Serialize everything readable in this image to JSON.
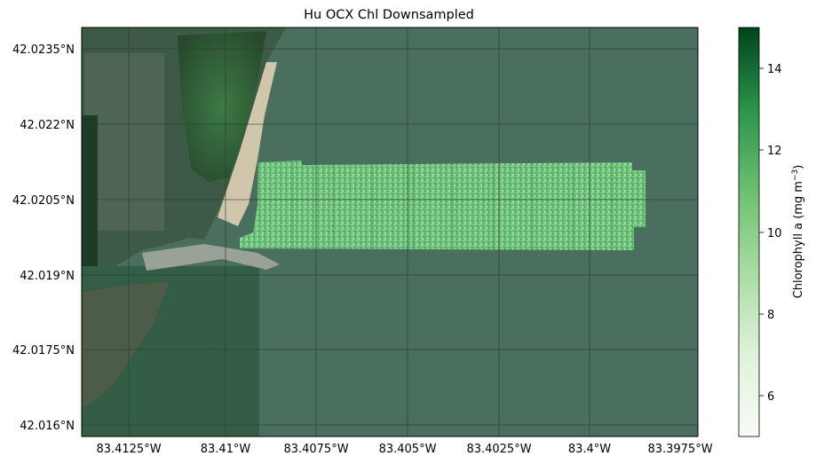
{
  "title": "Hu OCX Chl Downsampled",
  "colors": {
    "water": "#4a6f5f",
    "land_dark": "#2e4a33",
    "sand": "#c9c2a8",
    "gridline": "#2a3a30",
    "colormap_low": "#f7fcf5",
    "colormap_mid": "#74c476",
    "colormap_high": "#00441b"
  },
  "map": {
    "x_ticks": [
      "83.4125°W",
      "83.41°W",
      "83.4075°W",
      "83.405°W",
      "83.4025°W",
      "83.4°W",
      "83.3975°W"
    ],
    "y_ticks": [
      "42.0235°N",
      "42.022°N",
      "42.0205°N",
      "42.019°N",
      "42.0175°N",
      "42.016°N"
    ],
    "gridlines": true,
    "basemap": "satellite imagery"
  },
  "colorbar": {
    "label": "Chlorophyll a (mg m",
    "label_superscript": "−3",
    "label_close": ")",
    "ticks": [
      "6",
      "8",
      "10",
      "12",
      "14"
    ],
    "range": [
      5,
      15
    ],
    "colormap": "Greens"
  },
  "chart_data": {
    "type": "heatmap",
    "title": "Hu OCX Chl Downsampled",
    "xlabel": "",
    "ylabel": "",
    "colorbar_label": "Chlorophyll a (mg m−3)",
    "colorbar_range": [
      5,
      15
    ],
    "x_ticks": [
      "83.4125°W",
      "83.41°W",
      "83.4075°W",
      "83.405°W",
      "83.4025°W",
      "83.4°W",
      "83.3975°W"
    ],
    "y_ticks": [
      "42.0235°N",
      "42.022°N",
      "42.0205°N",
      "42.019°N",
      "42.0175°N",
      "42.016°N"
    ]
  }
}
